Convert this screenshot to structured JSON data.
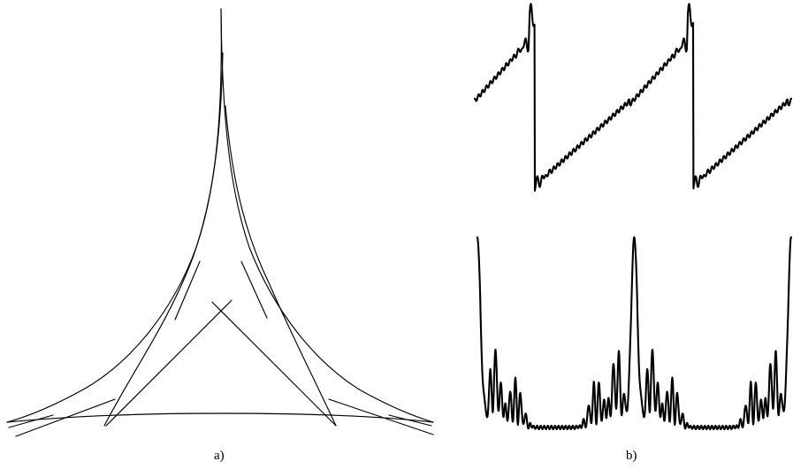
{
  "panels": {
    "a": {
      "label": "a)"
    },
    "b": {
      "label": "b)"
    }
  }
}
